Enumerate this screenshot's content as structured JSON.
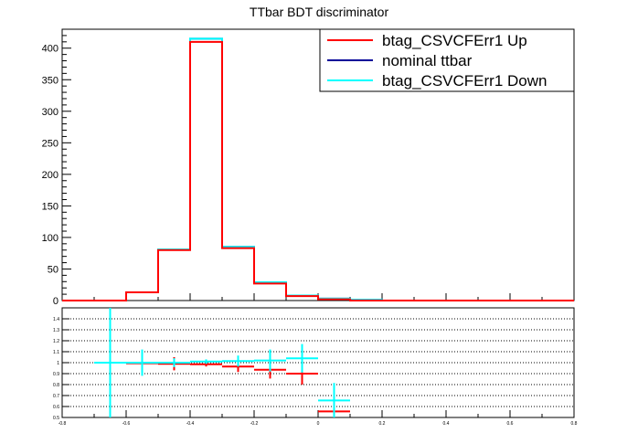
{
  "chart_data": {
    "type": "line",
    "title": "TTbar BDT discriminator",
    "x_bin_edges": [
      -0.8,
      -0.7,
      -0.6,
      -0.5,
      -0.4,
      -0.3,
      -0.2,
      -0.1,
      0.0,
      0.1,
      0.2,
      0.3,
      0.4,
      0.5,
      0.6,
      0.7,
      0.8
    ],
    "top_panel": {
      "ylim": [
        0,
        430
      ],
      "yticks": [
        0,
        50,
        100,
        150,
        200,
        250,
        300,
        350,
        400
      ],
      "series": [
        {
          "name": "btag_CSVCFErr1 Up",
          "color": "#ff0000",
          "values": [
            0,
            0,
            13,
            80,
            410,
            83,
            27,
            7,
            2,
            0,
            0,
            0,
            0,
            0,
            0,
            0
          ]
        },
        {
          "name": "nominal ttbar",
          "color": "#000099",
          "values": [
            0,
            0,
            13,
            81,
            415,
            85,
            29,
            8,
            3,
            1,
            0,
            0,
            0,
            0,
            0,
            0
          ]
        },
        {
          "name": "btag_CSVCFErr1 Down",
          "color": "#00ffff",
          "values": [
            0,
            0,
            13,
            81,
            415,
            85,
            29,
            8,
            3,
            1,
            0,
            0,
            0,
            0,
            0,
            0
          ]
        }
      ]
    },
    "ratio_panel": {
      "ylim": [
        0.5,
        1.5
      ],
      "yticks": [
        0.5,
        0.6,
        0.7,
        0.8,
        0.9,
        1,
        1.1,
        1.2,
        1.3,
        1.4
      ],
      "grid": true,
      "xticks": [
        -0.8,
        -0.6,
        -0.4,
        -0.2,
        0,
        0.2,
        0.4,
        0.6,
        0.8
      ],
      "series": [
        {
          "name": "btag_CSVCFErr1 Up",
          "color": "#ff0000",
          "points": [
            {
              "x": -0.55,
              "y": 0.995,
              "err": 0.05
            },
            {
              "x": -0.45,
              "y": 0.99,
              "err": 0.06
            },
            {
              "x": -0.35,
              "y": 0.985,
              "err": 0.02
            },
            {
              "x": -0.25,
              "y": 0.965,
              "err": 0.05
            },
            {
              "x": -0.15,
              "y": 0.935,
              "err": 0.08
            },
            {
              "x": -0.05,
              "y": 0.9,
              "err": 0.1
            },
            {
              "x": 0.05,
              "y": 0.555,
              "err": 0.0
            }
          ]
        },
        {
          "name": "btag_CSVCFErr1 Down",
          "color": "#00ffff",
          "points": [
            {
              "x": -0.65,
              "y": 1.0,
              "err": 0.55
            },
            {
              "x": -0.55,
              "y": 1.0,
              "err": 0.12
            },
            {
              "x": -0.45,
              "y": 1.0,
              "err": 0.04
            },
            {
              "x": -0.35,
              "y": 1.01,
              "err": 0.02
            },
            {
              "x": -0.25,
              "y": 1.015,
              "err": 0.05
            },
            {
              "x": -0.15,
              "y": 1.02,
              "err": 0.1
            },
            {
              "x": -0.05,
              "y": 1.04,
              "err": 0.13
            },
            {
              "x": 0.05,
              "y": 0.655,
              "err": 0.16
            }
          ]
        }
      ]
    }
  },
  "legend": {
    "items": [
      {
        "label": "btag_CSVCFErr1 Up",
        "color": "#ff0000"
      },
      {
        "label": "nominal ttbar",
        "color": "#000099"
      },
      {
        "label": "btag_CSVCFErr1 Down",
        "color": "#00ffff"
      }
    ]
  }
}
